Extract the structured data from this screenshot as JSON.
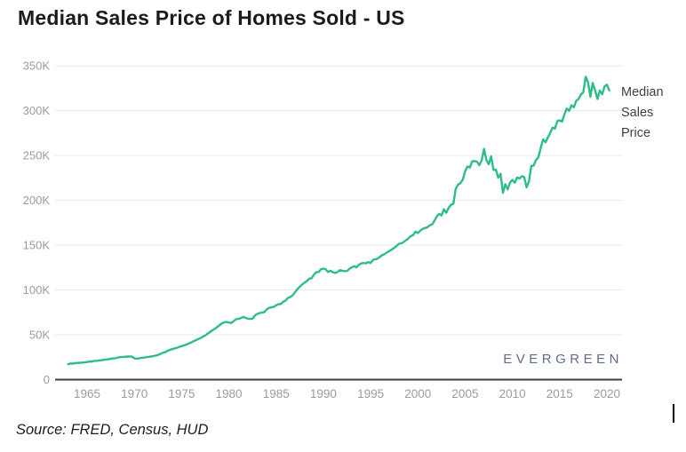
{
  "title": "Median Sales Price of Homes Sold - US",
  "source_note": "Source: FRED, Census, HUD",
  "watermark": "EVERGREEN",
  "legend": {
    "lines": [
      "Median",
      "Sales",
      "Price"
    ]
  },
  "colors": {
    "line": "#2ebd85",
    "gridline": "#eaeaea",
    "axis_line": "#3f3f3f",
    "tick_label": "#9b9b9b",
    "title_text": "#1b1b1b",
    "legend_text": "#3f3f3f",
    "watermark_text": "#5d6d87",
    "source_text": "#1d1d1d"
  },
  "chart_data": {
    "type": "line",
    "title": "Median Sales Price of Homes Sold - US",
    "series_name": "Median Sales Price",
    "unit": "USD thousands",
    "x_start": 1963,
    "x_step": 0.25,
    "xlim": [
      1961.6,
      2021.6
    ],
    "ylim": [
      0,
      358
    ],
    "grid": true,
    "legend_position": "right",
    "x_ticks": [
      1965,
      1970,
      1975,
      1980,
      1985,
      1990,
      1995,
      2000,
      2005,
      2010,
      2015,
      2020
    ],
    "x_tick_labels": [
      "1965",
      "1970",
      "1975",
      "1980",
      "1985",
      "1990",
      "1995",
      "2000",
      "2005",
      "2010",
      "2015",
      "2020"
    ],
    "y_ticks": [
      0,
      50,
      100,
      150,
      200,
      250,
      300,
      350
    ],
    "y_tick_labels": [
      "0",
      "50K",
      "100K",
      "150K",
      "200K",
      "250K",
      "300K",
      "350K"
    ],
    "values": [
      17.2,
      18.0,
      17.9,
      18.5,
      18.5,
      18.9,
      18.9,
      19.4,
      19.6,
      20.2,
      20.0,
      20.9,
      21.0,
      21.4,
      21.6,
      22.2,
      22.4,
      22.7,
      23.2,
      23.7,
      23.9,
      24.7,
      25.1,
      25.4,
      25.5,
      25.8,
      25.9,
      25.7,
      23.9,
      23.4,
      23.7,
      24.4,
      24.4,
      25.2,
      25.4,
      25.9,
      26.2,
      26.7,
      27.5,
      28.6,
      29.9,
      30.6,
      32.1,
      33.2,
      34.0,
      34.8,
      35.5,
      36.6,
      37.3,
      38.1,
      39.1,
      40.2,
      41.4,
      42.8,
      44.0,
      45.2,
      46.3,
      47.9,
      49.2,
      51.2,
      53.0,
      55.0,
      56.6,
      58.6,
      60.6,
      62.7,
      63.9,
      64.3,
      63.7,
      63.2,
      65.2,
      67.4,
      67.8,
      68.6,
      69.9,
      69.0,
      68.0,
      67.8,
      68.1,
      71.4,
      73.3,
      74.2,
      74.9,
      75.4,
      78.2,
      80.0,
      80.6,
      81.2,
      82.8,
      84.1,
      84.4,
      86.9,
      88.2,
      91.1,
      92.1,
      94.2,
      97.5,
      101.0,
      103.6,
      106.1,
      108.1,
      110.0,
      112.6,
      113.1,
      117.1,
      120.0,
      120.1,
      123.2,
      123.9,
      122.9,
      120.1,
      121.6,
      119.9,
      119.0,
      120.1,
      122.1,
      121.6,
      121.1,
      121.2,
      123.6,
      125.1,
      126.6,
      125.2,
      128.1,
      129.6,
      130.1,
      129.7,
      131.2,
      130.1,
      133.6,
      134.1,
      135.2,
      137.1,
      139.1,
      140.1,
      142.1,
      143.6,
      145.1,
      147.1,
      149.1,
      151.6,
      152.1,
      153.6,
      155.6,
      157.6,
      160.1,
      161.1,
      165.1,
      163.6,
      166.1,
      168.1,
      169.1,
      169.9,
      172.1,
      173.1,
      177.1,
      182.1,
      185.1,
      183.1,
      190.1,
      186.1,
      191.6,
      195.1,
      196.1,
      212.7,
      217.6,
      219.1,
      223.1,
      232.6,
      237.9,
      236.6,
      243.6,
      243.8,
      243.2,
      239.1,
      244.9,
      257.4,
      245.1,
      240.3,
      249.1,
      233.9,
      234.3,
      225.3,
      229.6,
      208.4,
      218.1,
      212.2,
      219.9,
      222.9,
      219.6,
      225.5,
      224.3,
      226.9,
      226.0,
      214.5,
      221.2,
      238.4,
      238.7,
      245.1,
      248.0,
      258.4,
      268.1,
      264.8,
      270.2,
      275.2,
      281.1,
      280.0,
      288.5,
      289.2,
      287.8,
      295.8,
      302.5,
      299.8,
      306.0,
      303.8,
      310.9,
      313.1,
      318.2,
      320.5,
      337.9,
      331.8,
      315.6,
      330.9,
      322.8,
      313.0,
      322.5,
      318.4,
      327.1,
      329.0,
      322.6
    ]
  }
}
